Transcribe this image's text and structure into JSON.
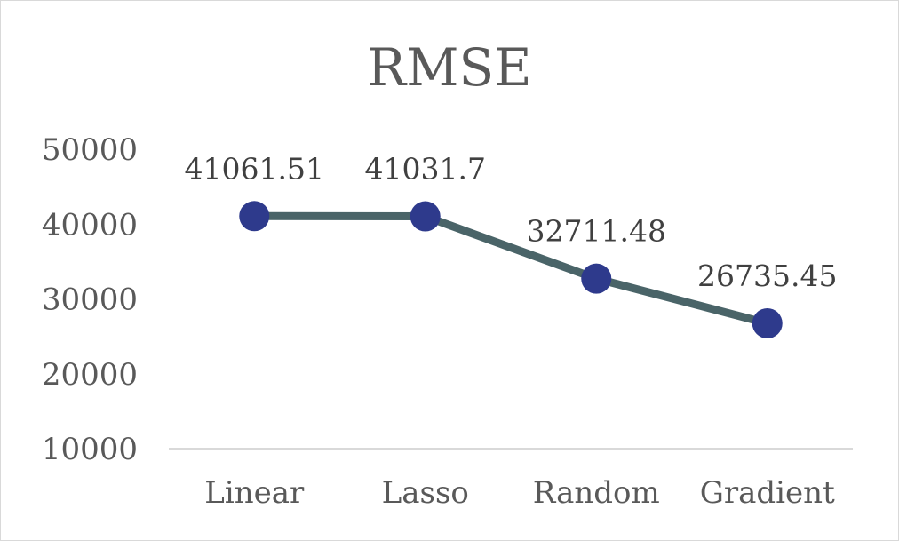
{
  "chart_data": {
    "type": "line",
    "title": "RMSE",
    "categories": [
      "Linear",
      "Lasso",
      "Random",
      "Gradient"
    ],
    "series": [
      {
        "values": [
          41061.51,
          41031.7,
          32711.48,
          26735.45
        ],
        "data_labels": [
          "41061.51",
          "41031.7",
          "32711.48",
          "26735.45"
        ]
      }
    ],
    "yticks": [
      "50000",
      "40000",
      "30000",
      "20000",
      "10000"
    ],
    "ylim": [
      10000,
      50000
    ],
    "grid": false,
    "legend": "none",
    "colors": {
      "line": "#4a6468",
      "marker": "#2e3a8c",
      "axis": "#d9d9d9",
      "text": "#595959"
    }
  }
}
